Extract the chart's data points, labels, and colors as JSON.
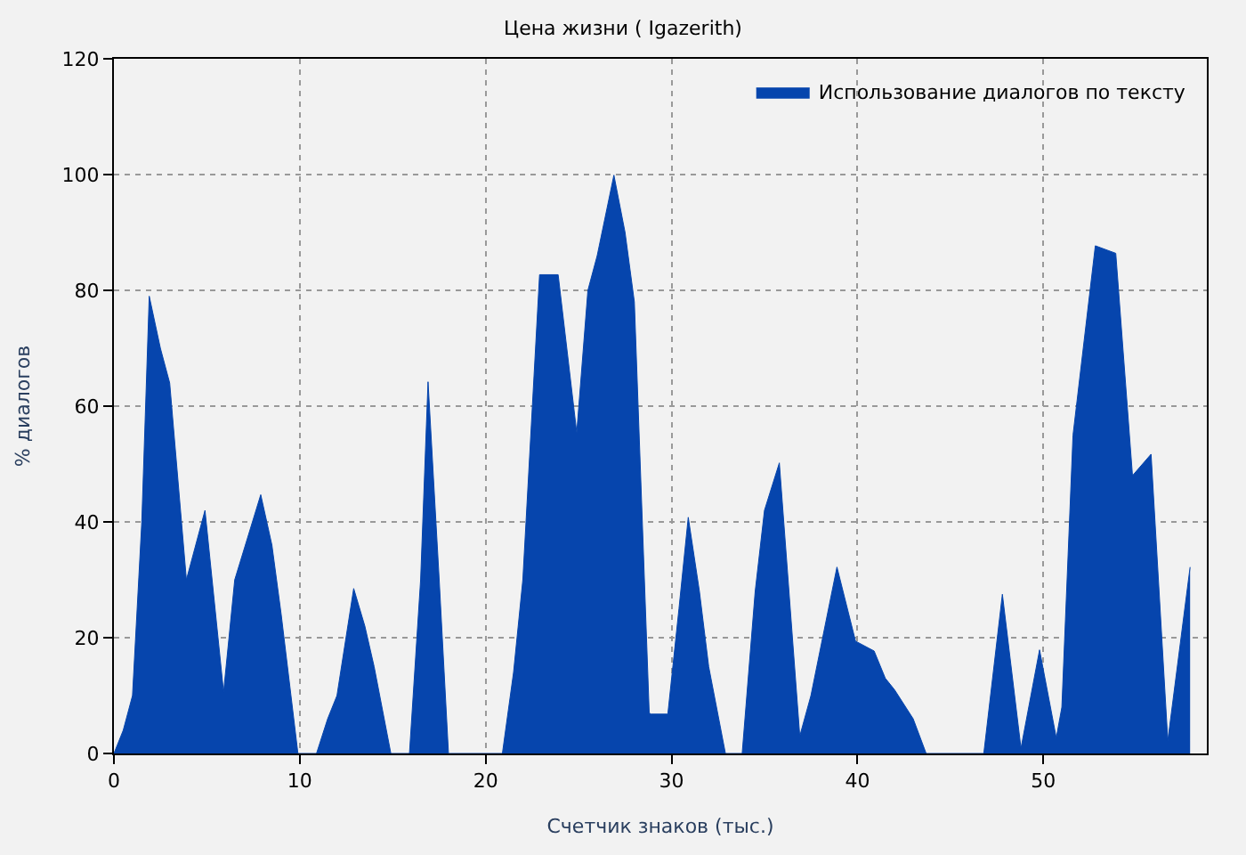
{
  "chart_data": {
    "type": "area",
    "title": "Цена жизни ( Igazerith)",
    "xlabel": "Счетчик знаков (тыс.)",
    "ylabel": "% диалогов",
    "x": [
      0,
      0.5,
      1,
      1.5,
      1.9,
      2.5,
      3,
      3.9,
      4.9,
      5.9,
      6.5,
      7.9,
      8.5,
      9,
      9.9,
      10.9,
      11.5,
      12,
      12.9,
      13.5,
      14,
      14.9,
      15.9,
      16.5,
      16.9,
      17.5,
      18.0,
      20.9,
      21.5,
      22,
      22.9,
      23.9,
      24.9,
      25.5,
      26,
      26.9,
      27.5,
      28,
      28.8,
      28.9,
      29.8,
      30.4,
      30.9,
      31.5,
      32,
      32.9,
      33.8,
      34.5,
      35,
      35.8,
      36.9,
      37.5,
      38.9,
      39.9,
      40.9,
      41.5,
      42,
      43,
      43.7,
      46.8,
      47.8,
      48.8,
      49.8,
      50.7,
      51,
      51.6,
      52.8,
      53.9,
      54.8,
      55.8,
      56.7,
      57.9
    ],
    "series": [
      {
        "name": "Использование диалогов по тексту",
        "color": "#0645ad",
        "values": [
          0,
          4,
          10,
          40,
          79,
          70,
          64,
          30,
          42,
          10.6,
          30,
          44.7,
          36,
          24,
          0,
          0,
          6,
          10,
          28.5,
          22,
          15,
          0,
          0,
          30,
          64.2,
          30,
          0,
          0,
          14,
          30,
          82.7,
          82.7,
          55.4,
          80,
          86,
          99.9,
          90,
          78,
          7,
          6.8,
          6.8,
          25,
          40.8,
          28,
          15,
          0,
          0,
          28,
          42,
          50.2,
          3,
          10,
          32.2,
          19.4,
          17.7,
          13,
          11,
          6,
          0,
          0,
          27.5,
          0.9,
          17.9,
          2.7,
          8,
          55,
          87.7,
          86.4,
          48,
          51.7,
          2.2,
          32.2
        ]
      }
    ],
    "xlim": [
      0,
      58.8
    ],
    "xticks": [
      0,
      10,
      20,
      30,
      40,
      50
    ],
    "ylim": [
      0,
      120
    ],
    "yticks": [
      0,
      20,
      40,
      60,
      80,
      100,
      120
    ],
    "grid": true,
    "legend": "top right"
  }
}
